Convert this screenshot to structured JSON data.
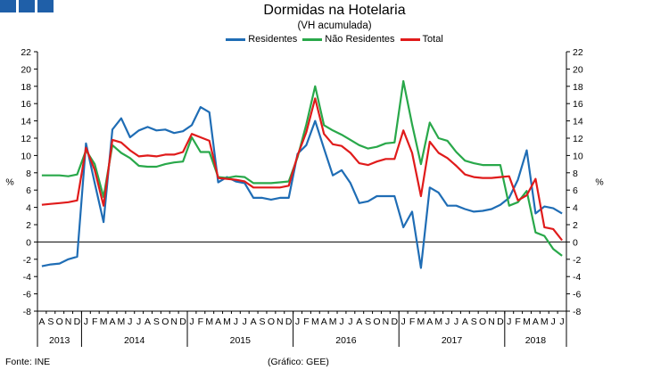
{
  "page": {
    "source": "Fonte: INE",
    "credit": "(Gráfico: GEE)"
  },
  "logo_icon": "ine-logo-squares",
  "chart_data": {
    "type": "line",
    "title": "Dormidas na Hotelaria",
    "subtitle": "(VH acumulada)",
    "ylabel": "%",
    "ylabel_right": "%",
    "ylim": [
      -8,
      22
    ],
    "yticks": [
      -8,
      -6,
      -4,
      -2,
      0,
      2,
      4,
      6,
      8,
      10,
      12,
      14,
      16,
      18,
      20,
      22
    ],
    "grid": false,
    "legend_position": "top-center",
    "months": [
      "A",
      "S",
      "O",
      "N",
      "D",
      "J",
      "F",
      "M",
      "A",
      "M",
      "J",
      "J",
      "A",
      "S",
      "O",
      "N",
      "D",
      "J",
      "F",
      "M",
      "A",
      "M",
      "J",
      "J",
      "A",
      "S",
      "O",
      "N",
      "D",
      "J",
      "F",
      "M",
      "A",
      "M",
      "J",
      "J",
      "A",
      "S",
      "O",
      "N",
      "D",
      "J",
      "F",
      "M",
      "A",
      "M",
      "J",
      "J",
      "A",
      "S",
      "O",
      "N",
      "D",
      "J",
      "F",
      "M",
      "A",
      "M",
      "J",
      "J"
    ],
    "years": [
      {
        "label": "2013",
        "start": 0,
        "count": 5
      },
      {
        "label": "2014",
        "start": 5,
        "count": 12
      },
      {
        "label": "2015",
        "start": 17,
        "count": 12
      },
      {
        "label": "2016",
        "start": 29,
        "count": 12
      },
      {
        "label": "2017",
        "start": 41,
        "count": 12
      },
      {
        "label": "2018",
        "start": 53,
        "count": 7
      }
    ],
    "series": [
      {
        "name": "Residentes",
        "color": "#1f6db5",
        "values": [
          -2.8,
          -2.6,
          -2.5,
          -2.0,
          -1.7,
          11.4,
          6.8,
          2.3,
          13.0,
          14.3,
          12.1,
          12.9,
          13.3,
          12.9,
          13.0,
          12.6,
          12.8,
          13.5,
          15.6,
          15.0,
          6.9,
          7.5,
          7.0,
          6.8,
          5.1,
          5.1,
          4.9,
          5.1,
          5.1,
          10.2,
          11.2,
          14.0,
          10.8,
          7.7,
          8.3,
          6.8,
          4.5,
          4.7,
          5.3,
          5.3,
          5.3,
          1.7,
          3.5,
          -3.0,
          6.3,
          5.7,
          4.2,
          4.2,
          3.8,
          3.5,
          3.6,
          3.8,
          4.3,
          5.1,
          7.2,
          10.6,
          3.3,
          4.1,
          3.9,
          3.3
        ]
      },
      {
        "name": "Não Residentes",
        "color": "#29a84a",
        "values": [
          7.7,
          7.7,
          7.7,
          7.6,
          7.8,
          10.6,
          9.0,
          5.2,
          11.2,
          10.3,
          9.7,
          8.8,
          8.7,
          8.7,
          9.0,
          9.2,
          9.3,
          12.1,
          10.4,
          10.4,
          7.5,
          7.4,
          7.6,
          7.5,
          6.8,
          6.8,
          6.8,
          6.9,
          7.0,
          9.8,
          13.6,
          18.0,
          13.5,
          12.9,
          12.4,
          11.8,
          11.2,
          10.8,
          11.0,
          11.4,
          11.5,
          18.6,
          13.6,
          9.0,
          13.8,
          12.0,
          11.7,
          10.4,
          9.4,
          9.1,
          8.9,
          8.9,
          8.9,
          4.2,
          4.6,
          5.9,
          1.1,
          0.7,
          -0.8,
          -1.6
        ]
      },
      {
        "name": "Total",
        "color": "#e01b1b",
        "values": [
          4.3,
          4.4,
          4.5,
          4.6,
          4.8,
          10.9,
          8.3,
          4.2,
          11.8,
          11.5,
          10.6,
          9.9,
          10.0,
          9.9,
          10.1,
          10.1,
          10.4,
          12.5,
          12.1,
          11.7,
          7.4,
          7.3,
          7.2,
          7.0,
          6.3,
          6.3,
          6.3,
          6.3,
          6.5,
          10.0,
          12.7,
          16.6,
          12.5,
          11.3,
          11.1,
          10.3,
          9.1,
          8.9,
          9.3,
          9.6,
          9.6,
          12.9,
          10.3,
          5.3,
          11.6,
          10.3,
          9.7,
          8.8,
          7.8,
          7.5,
          7.4,
          7.4,
          7.5,
          7.6,
          4.8,
          5.4,
          7.3,
          1.7,
          1.5,
          0.2
        ]
      }
    ]
  }
}
